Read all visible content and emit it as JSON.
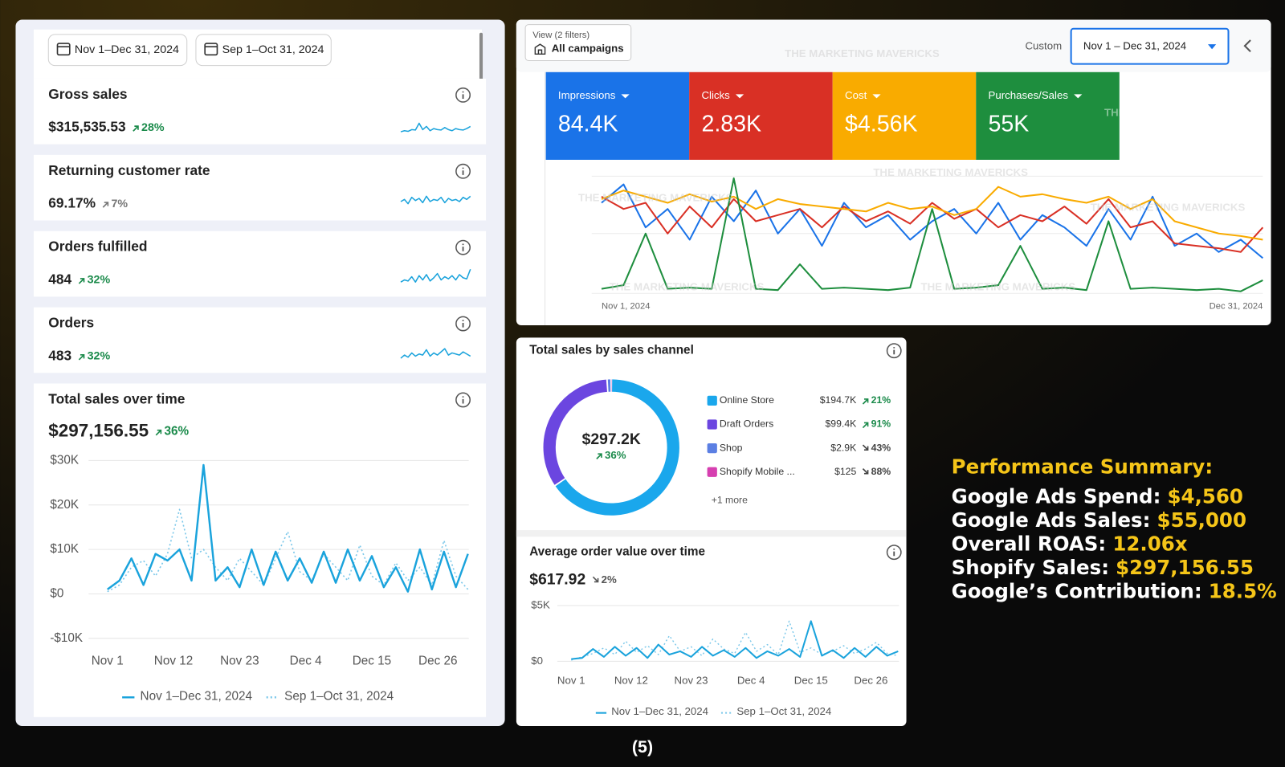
{
  "shopify": {
    "date_filters": [
      "Nov 1–Dec 31, 2024",
      "Sep 1–Oct 31, 2024"
    ],
    "sparkline_ylim": [
      0,
      100
    ],
    "metrics": [
      {
        "title": "Gross sales",
        "value": "$315,535.53",
        "change": "28%",
        "trend": "up",
        "change_color": "#1a8a4a",
        "spark": [
          20,
          25,
          22,
          30,
          28,
          60,
          30,
          45,
          25,
          35,
          30,
          28,
          40,
          30,
          25,
          35,
          30,
          28,
          35,
          45
        ]
      },
      {
        "title": "Returning customer rate",
        "value": "69.17%",
        "change": "7%",
        "trend": "up",
        "change_color": "#777777",
        "spark": [
          50,
          60,
          40,
          70,
          55,
          65,
          45,
          75,
          50,
          60,
          55,
          70,
          45,
          65,
          55,
          60,
          50,
          70,
          60,
          75
        ]
      },
      {
        "title": "Orders fulfilled",
        "value": "484",
        "change": "32%",
        "trend": "up",
        "change_color": "#1a8a4a",
        "spark": [
          30,
          40,
          35,
          55,
          30,
          60,
          40,
          65,
          35,
          50,
          70,
          40,
          55,
          45,
          60,
          40,
          65,
          50,
          45,
          90
        ]
      },
      {
        "title": "Orders",
        "value": "483",
        "change": "32%",
        "trend": "up",
        "change_color": "#1a8a4a",
        "spark": [
          30,
          45,
          35,
          55,
          40,
          50,
          45,
          70,
          40,
          55,
          45,
          60,
          75,
          45,
          55,
          50,
          45,
          60,
          50,
          40
        ]
      }
    ],
    "sales_over_time": {
      "type": "line",
      "title": "Total sales over time",
      "value": "$297,156.55",
      "change": "36%",
      "trend": "up",
      "change_color": "#1a8a4a",
      "ylim": [
        -10000,
        30000
      ],
      "yticks": [
        {
          "value": 30000,
          "label": "$30K"
        },
        {
          "value": 20000,
          "label": "$20K"
        },
        {
          "value": 10000,
          "label": "$10K"
        },
        {
          "value": 0,
          "label": "$0"
        },
        {
          "value": -10000,
          "label": "-$10K"
        }
      ],
      "xlim": [
        0,
        30
      ],
      "xticks": [
        {
          "value": 0,
          "label": "Nov 1"
        },
        {
          "value": 5.5,
          "label": "Nov 12"
        },
        {
          "value": 11,
          "label": "Nov 23"
        },
        {
          "value": 16.5,
          "label": "Dec 4"
        },
        {
          "value": 22,
          "label": "Dec 15"
        },
        {
          "value": 27.5,
          "label": "Dec 26"
        }
      ],
      "grid": true,
      "series": [
        {
          "name": "Nov 1–Dec 31, 2024",
          "color": "#1aa3dc",
          "dashed": false,
          "values": [
            1000,
            3000,
            8000,
            2000,
            9000,
            7500,
            10000,
            3000,
            29000,
            3000,
            6000,
            1500,
            10000,
            2000,
            9500,
            3000,
            8000,
            2500,
            9500,
            2500,
            10000,
            3000,
            8500,
            1500,
            6000,
            500,
            10000,
            1000,
            9500,
            1500,
            9000
          ]
        },
        {
          "name": "Sep 1–Oct 31, 2024",
          "color": "#7cc8ea",
          "dashed": true,
          "values": [
            500,
            2000,
            6000,
            7500,
            4000,
            9000,
            19000,
            8000,
            10000,
            6000,
            3000,
            8000,
            5000,
            2000,
            8000,
            14000,
            5000,
            3000,
            9000,
            6000,
            3000,
            11000,
            4000,
            2000,
            7000,
            3000,
            6000,
            2000,
            12000,
            4000,
            1000
          ]
        }
      ]
    }
  },
  "google_ads": {
    "view_label": "View (2 filters)",
    "view_value": "All campaigns",
    "range_label": "Custom",
    "range_value": "Nov 1 – Dec 31, 2024",
    "watermark": "THE MARKETING MAVERICKS",
    "tiles": [
      {
        "name": "Impressions",
        "value": "84.4K",
        "color": "#1a73e8"
      },
      {
        "name": "Clicks",
        "value": "2.83K",
        "color": "#d93025"
      },
      {
        "name": "Cost",
        "value": "$4.56K",
        "color": "#f9ab00"
      },
      {
        "name": "Purchases/Sales",
        "value": "55K",
        "color": "#1e8e3e"
      }
    ],
    "chart": {
      "type": "line",
      "ylim": [
        0,
        100
      ],
      "x_start": "Nov 1, 2024",
      "x_end": "Dec 31, 2024",
      "series": [
        {
          "name": "Impressions",
          "color": "#1a73e8",
          "values": [
            75,
            90,
            55,
            70,
            45,
            80,
            60,
            85,
            50,
            70,
            40,
            75,
            55,
            65,
            45,
            60,
            70,
            50,
            75,
            45,
            65,
            55,
            40,
            70,
            45,
            80,
            40,
            50,
            35,
            45,
            30
          ]
        },
        {
          "name": "Clicks",
          "color": "#d93025",
          "values": [
            80,
            70,
            75,
            50,
            72,
            55,
            78,
            60,
            65,
            70,
            55,
            72,
            60,
            68,
            58,
            75,
            62,
            70,
            55,
            65,
            60,
            72,
            58,
            78,
            55,
            60,
            42,
            40,
            38,
            35,
            55
          ]
        },
        {
          "name": "Cost",
          "color": "#f9ab00",
          "values": [
            78,
            85,
            80,
            75,
            82,
            76,
            80,
            70,
            78,
            74,
            72,
            70,
            68,
            75,
            70,
            72,
            65,
            70,
            88,
            80,
            82,
            78,
            75,
            80,
            70,
            78,
            60,
            55,
            50,
            48,
            45
          ]
        },
        {
          "name": "Purchases/Sales",
          "color": "#1e8e3e",
          "values": [
            5,
            8,
            50,
            5,
            6,
            5,
            95,
            5,
            4,
            25,
            5,
            6,
            5,
            4,
            6,
            70,
            5,
            6,
            8,
            40,
            5,
            6,
            4,
            60,
            5,
            6,
            5,
            4,
            5,
            3,
            12
          ]
        }
      ]
    }
  },
  "sales_channel": {
    "type": "pie",
    "title": "Total sales by sales channel",
    "total": "$297.2K",
    "change": "36%",
    "trend": "up",
    "channels": [
      {
        "name": "Online Store",
        "value": 194700,
        "value_label": "$194.7K",
        "change": "21%",
        "trend": "up",
        "color": "#1aa7ec"
      },
      {
        "name": "Draft Orders",
        "value": 99400,
        "value_label": "$99.4K",
        "change": "91%",
        "trend": "up",
        "color": "#6b46e0"
      },
      {
        "name": "Shop",
        "value": 2900,
        "value_label": "$2.9K",
        "change": "43%",
        "trend": "down",
        "color": "#5b7fe3"
      },
      {
        "name": "Shopify Mobile ...",
        "value": 125,
        "value_label": "$125",
        "change": "88%",
        "trend": "down",
        "color": "#d63fb0"
      }
    ],
    "more": "+1 more"
  },
  "aov": {
    "type": "line",
    "title": "Average order value over time",
    "value": "$617.92",
    "change": "2%",
    "trend": "down",
    "change_color": "#555555",
    "ylim": [
      0,
      5000
    ],
    "yticks": [
      {
        "value": 5000,
        "label": "$5K"
      },
      {
        "value": 0,
        "label": "$0"
      }
    ],
    "xlim": [
      0,
      30
    ],
    "xticks": [
      {
        "value": 0,
        "label": "Nov 1"
      },
      {
        "value": 5.5,
        "label": "Nov 12"
      },
      {
        "value": 11,
        "label": "Nov 23"
      },
      {
        "value": 16.5,
        "label": "Dec 4"
      },
      {
        "value": 22,
        "label": "Dec 15"
      },
      {
        "value": 27.5,
        "label": "Dec 26"
      }
    ],
    "series": [
      {
        "name": "Nov 1–Dec 31, 2024",
        "color": "#1aa3dc",
        "dashed": false,
        "values": [
          200,
          300,
          1100,
          400,
          1300,
          500,
          1200,
          300,
          1500,
          600,
          900,
          400,
          1300,
          500,
          1000,
          400,
          1200,
          300,
          900,
          500,
          1100,
          400,
          3600,
          500,
          1000,
          300,
          1200,
          400,
          1300,
          500,
          900
        ]
      },
      {
        "name": "Sep 1–Oct 31, 2024",
        "color": "#7cc8ea",
        "dashed": true,
        "values": [
          100,
          400,
          700,
          1200,
          600,
          1800,
          800,
          1400,
          600,
          2300,
          900,
          1300,
          500,
          2000,
          1100,
          700,
          2600,
          900,
          1500,
          600,
          3600,
          800,
          1200,
          600,
          900,
          1400,
          700,
          1100,
          1700,
          700,
          500
        ]
      }
    ]
  },
  "summary": {
    "title": "Performance Summary:",
    "lines": [
      {
        "label": "Google Ads Spend:",
        "value": "$4,560"
      },
      {
        "label": "Google Ads Sales:",
        "value": "$55,000"
      },
      {
        "label": "Overall ROAS:",
        "value": "12.06x"
      },
      {
        "label": "Shopify Sales:",
        "value": "$297,156.55"
      },
      {
        "label": "Google’s Contribution:",
        "value": "18.5%"
      }
    ]
  },
  "caption": "(5)"
}
